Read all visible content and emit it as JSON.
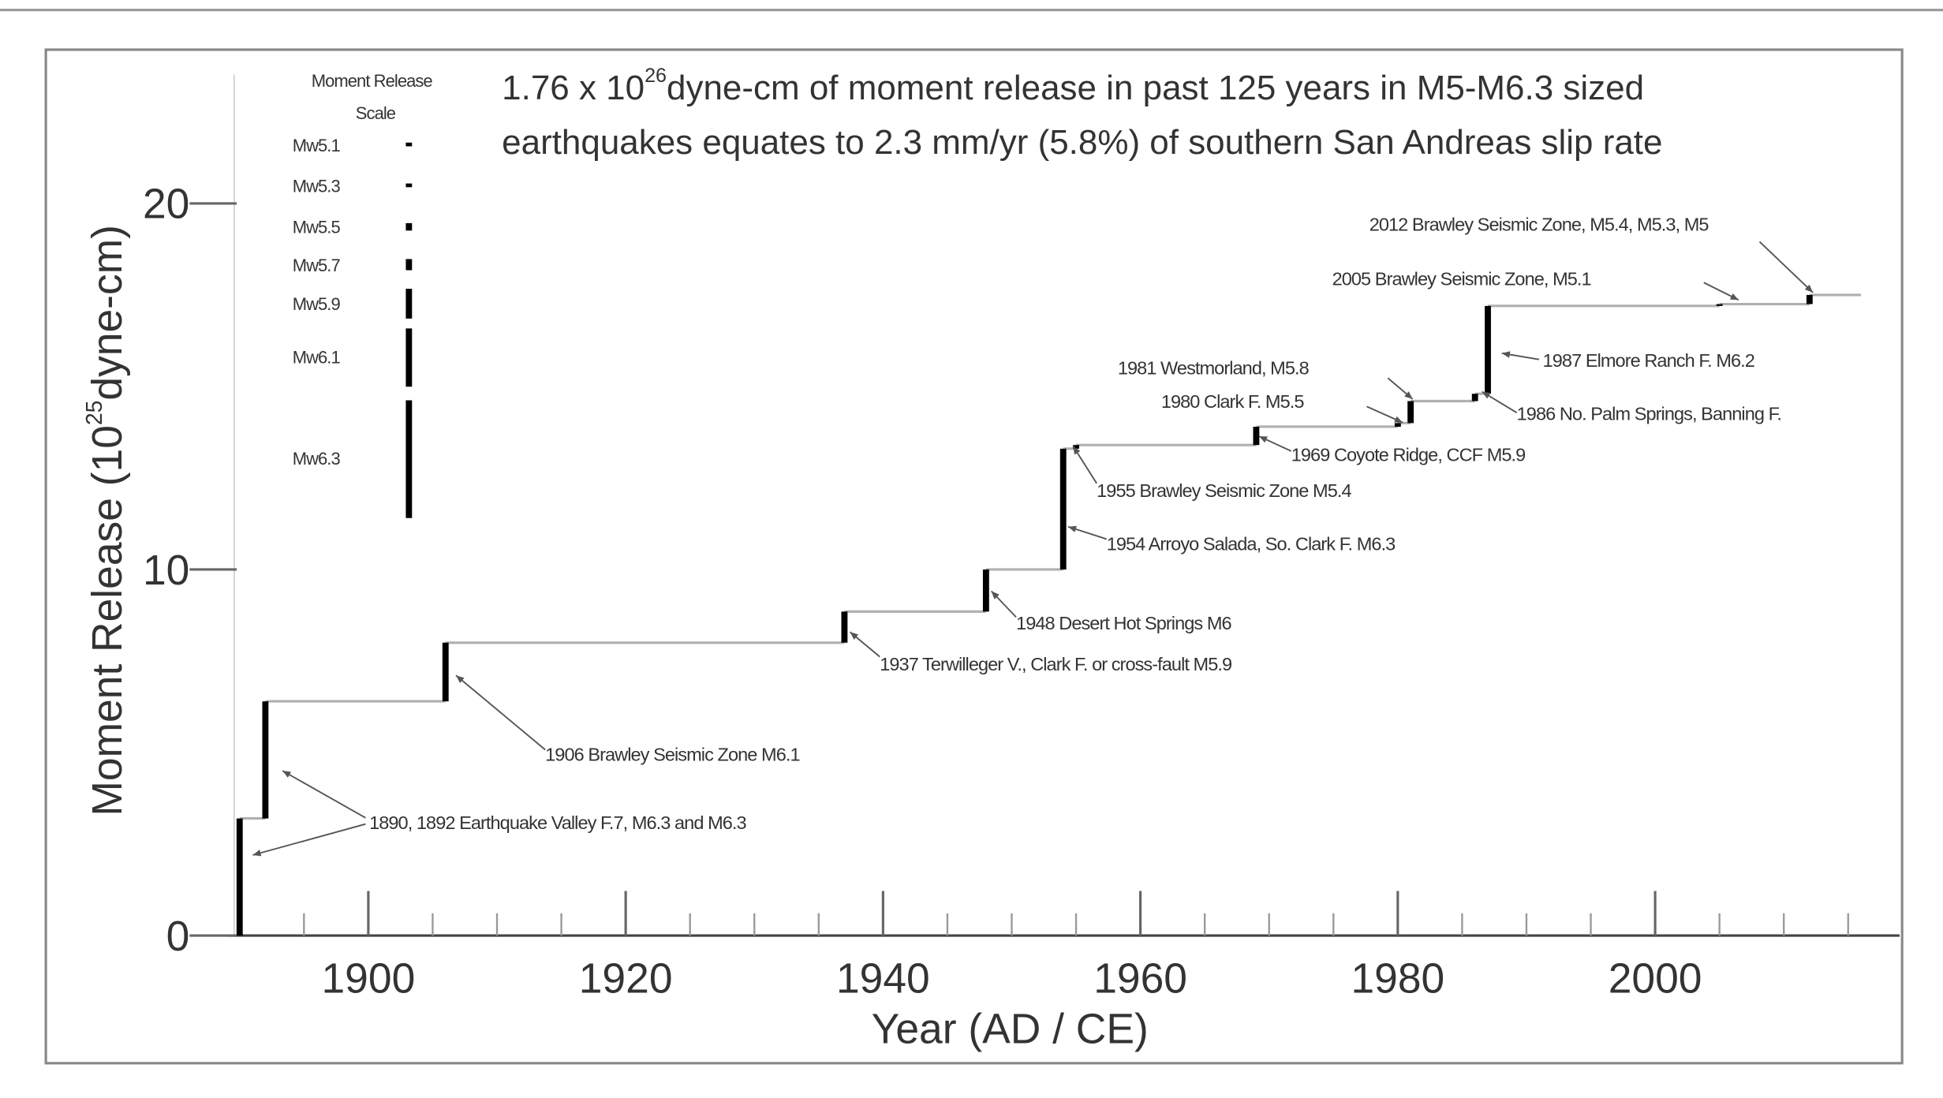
{
  "chart_data": {
    "type": "step",
    "title": {
      "line1": {
        "base": "1.76 x 10",
        "exponent": "26",
        "rest": "dyne-cm of moment release in past 125 years in M5-M6.3 sized"
      },
      "line2": "earthquakes equates to 2.3 mm/yr (5.8%) of southern San Andreas slip rate"
    },
    "y_label": {
      "base": "Moment Release (10",
      "exponent": "25",
      "rest": "dyne-cm)"
    },
    "x_label": "Year (AD / CE)",
    "x": [
      1890,
      1892,
      1906,
      1937,
      1948,
      1954,
      1955,
      1969,
      1980,
      1981,
      1986,
      1987,
      2005,
      2012,
      2016
    ],
    "series": [
      {
        "color": "#000000",
        "values": [
          3.2,
          6.4,
          8.0,
          8.85,
          10.0,
          13.3,
          13.4,
          13.9,
          14.0,
          14.6,
          14.8,
          17.2,
          17.25,
          17.5,
          17.5
        ]
      }
    ],
    "step_line_color": "#b0b0b0",
    "xlim": [
      1889,
      2019
    ],
    "ylim": [
      0,
      24.2
    ],
    "xticks": [
      1900,
      1920,
      1940,
      1960,
      1980,
      2000
    ],
    "xticks_minor": [
      1890,
      1895,
      1905,
      1910,
      1915,
      1925,
      1930,
      1935,
      1945,
      1950,
      1955,
      1965,
      1970,
      1975,
      1985,
      1990,
      1995,
      2005,
      2010,
      2015
    ],
    "yticks": [
      0,
      10,
      20
    ],
    "legend": {
      "title": [
        "Moment Release",
        "Scale"
      ],
      "items": [
        "Mw5.1",
        "Mw5.3",
        "Mw5.5",
        "Mw5.7",
        "Mw5.9",
        "Mw6.1",
        "Mw6.3"
      ]
    },
    "annotations": [
      "2012 Brawley Seismic Zone, M5.4, M5.3, M5",
      "2005 Brawley Seismic Zone, M5.1",
      "1981 Westmorland, M5.8",
      "1980 Clark F.  M5.5",
      "1987 Elmore Ranch F.  M6.2",
      "1986 No. Palm Springs, Banning F.",
      "1969 Coyote Ridge, CCF  M5.9",
      "1955 Brawley Seismic Zone  M5.4",
      "1954 Arroyo Salada, So. Clark F.  M6.3",
      "1948 Desert Hot Springs  M6",
      "1937 Terwilleger V., Clark F. or cross-fault  M5.9",
      "1906 Brawley Seismic Zone  M6.1",
      "1890, 1892 Earthquake Valley F.7, M6.3 and M6.3"
    ]
  }
}
